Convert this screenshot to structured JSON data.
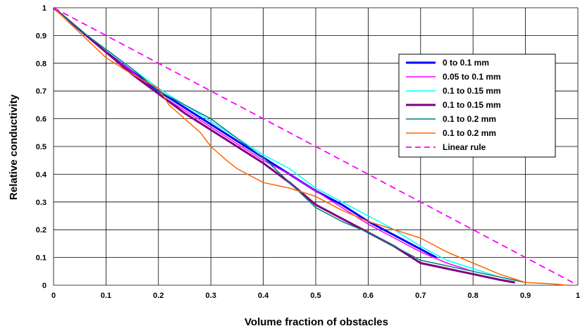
{
  "chart_data": {
    "type": "line",
    "title": "",
    "xlabel": "Volume fraction of obstacles",
    "ylabel": "Relative conductivity",
    "xlim": [
      0,
      1
    ],
    "ylim": [
      0,
      1
    ],
    "xticks": [
      "0",
      "0.1",
      "0.2",
      "0.3",
      "0.4",
      "0.5",
      "0.6",
      "0.7",
      "0.8",
      "0.9",
      "1"
    ],
    "yticks": [
      "0",
      "0.1",
      "0.2",
      "0.3",
      "0.4",
      "0.5",
      "0.6",
      "0.7",
      "0.8",
      "0.9",
      "1"
    ],
    "grid": true,
    "legend_position": "right",
    "series": [
      {
        "name": "0 to 0.1 mm",
        "color": "#0000ff",
        "dash": false,
        "width": 3,
        "x": [
          0,
          0.05,
          0.1,
          0.15,
          0.2,
          0.25,
          0.3,
          0.35,
          0.4,
          0.45,
          0.5,
          0.55,
          0.6,
          0.65,
          0.7,
          0.73
        ],
        "y": [
          1,
          0.92,
          0.84,
          0.77,
          0.7,
          0.64,
          0.58,
          0.52,
          0.46,
          0.4,
          0.34,
          0.29,
          0.23,
          0.18,
          0.13,
          0.1
        ]
      },
      {
        "name": "0.05 to 0.1 mm",
        "color": "#ff00ff",
        "dash": false,
        "width": 1.5,
        "x": [
          0,
          0.05,
          0.1,
          0.15,
          0.2,
          0.25,
          0.3,
          0.35,
          0.4,
          0.45,
          0.5,
          0.55,
          0.6,
          0.65,
          0.7,
          0.75,
          0.8
        ],
        "y": [
          1,
          0.92,
          0.84,
          0.77,
          0.69,
          0.63,
          0.57,
          0.51,
          0.45,
          0.4,
          0.34,
          0.28,
          0.22,
          0.17,
          0.12,
          0.08,
          0.05
        ]
      },
      {
        "name": "0.1 to 0.15 mm",
        "color": "#00ffff",
        "dash": false,
        "width": 1.5,
        "x": [
          0,
          0.05,
          0.1,
          0.15,
          0.2,
          0.25,
          0.3,
          0.35,
          0.4,
          0.45,
          0.5,
          0.55,
          0.6,
          0.65,
          0.7,
          0.75,
          0.8,
          0.85,
          0.9
        ],
        "y": [
          1,
          0.92,
          0.85,
          0.78,
          0.71,
          0.65,
          0.59,
          0.53,
          0.47,
          0.42,
          0.35,
          0.3,
          0.25,
          0.2,
          0.14,
          0.09,
          0.06,
          0.03,
          0.01
        ]
      },
      {
        "name": "0.1 to 0.15 mm",
        "color": "#800080",
        "dash": false,
        "width": 3,
        "x": [
          0,
          0.05,
          0.1,
          0.15,
          0.2,
          0.25,
          0.3,
          0.35,
          0.4,
          0.45,
          0.5,
          0.55,
          0.6,
          0.65,
          0.7,
          0.75,
          0.8,
          0.85,
          0.88
        ],
        "y": [
          1,
          0.92,
          0.84,
          0.76,
          0.69,
          0.62,
          0.56,
          0.5,
          0.44,
          0.37,
          0.29,
          0.24,
          0.19,
          0.14,
          0.08,
          0.06,
          0.04,
          0.02,
          0.01
        ]
      },
      {
        "name": "0.1 to 0.2 mm",
        "color": "#008080",
        "dash": false,
        "width": 1.5,
        "x": [
          0,
          0.05,
          0.1,
          0.15,
          0.2,
          0.25,
          0.3,
          0.35,
          0.4,
          0.45,
          0.5,
          0.55,
          0.6,
          0.65,
          0.7,
          0.75,
          0.8,
          0.85,
          0.9
        ],
        "y": [
          1,
          0.92,
          0.85,
          0.78,
          0.7,
          0.65,
          0.6,
          0.53,
          0.46,
          0.37,
          0.28,
          0.23,
          0.19,
          0.14,
          0.09,
          0.07,
          0.05,
          0.03,
          0.01
        ]
      },
      {
        "name": "0.1 to 0.2 mm",
        "color": "#ff6600",
        "dash": false,
        "width": 1.5,
        "x": [
          0,
          0.05,
          0.1,
          0.15,
          0.2,
          0.22,
          0.25,
          0.28,
          0.3,
          0.33,
          0.35,
          0.4,
          0.45,
          0.5,
          0.55,
          0.6,
          0.65,
          0.7,
          0.75,
          0.8,
          0.85,
          0.9,
          0.95,
          0.98
        ],
        "y": [
          1,
          0.91,
          0.82,
          0.76,
          0.71,
          0.65,
          0.6,
          0.55,
          0.5,
          0.45,
          0.42,
          0.37,
          0.35,
          0.32,
          0.27,
          0.23,
          0.2,
          0.17,
          0.12,
          0.08,
          0.04,
          0.01,
          0.005,
          0
        ]
      },
      {
        "name": "Linear rule",
        "color": "#ff00ff",
        "dash": true,
        "width": 1.8,
        "x": [
          0,
          1
        ],
        "y": [
          1,
          0
        ]
      }
    ]
  }
}
